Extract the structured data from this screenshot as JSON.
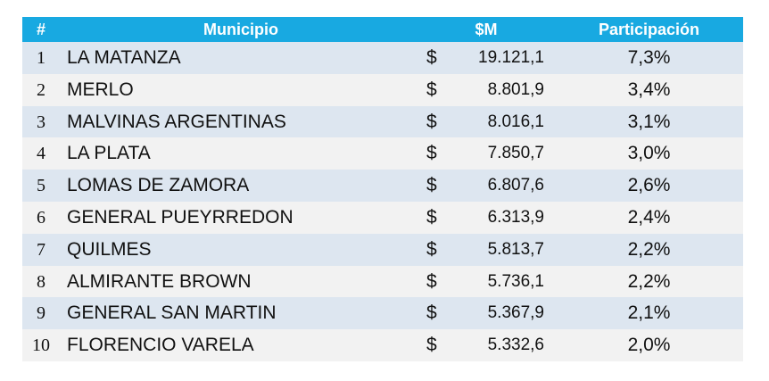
{
  "table": {
    "header": [
      "#",
      "Municipio",
      "$M",
      "Participación"
    ],
    "rows": [
      [
        "1",
        "LA MATANZA",
        "$",
        "19.121,1",
        "7,3%"
      ],
      [
        "2",
        "MERLO",
        "$",
        "8.801,9",
        "3,4%"
      ],
      [
        "3",
        "MALVINAS ARGENTINAS",
        "$",
        "8.016,1",
        "3,1%"
      ],
      [
        "4",
        "LA PLATA",
        "$",
        "7.850,7",
        "3,0%"
      ],
      [
        "5",
        "LOMAS DE ZAMORA",
        "$",
        "6.807,6",
        "2,6%"
      ],
      [
        "6",
        "GENERAL PUEYRREDON",
        "$",
        "6.313,9",
        "2,4%"
      ],
      [
        "7",
        "QUILMES",
        "$",
        "5.813,7",
        "2,2%"
      ],
      [
        "8",
        "ALMIRANTE BROWN",
        "$",
        "5.736,1",
        "2,2%"
      ],
      [
        "9",
        "GENERAL SAN MARTIN",
        "$",
        "5.367,9",
        "2,1%"
      ],
      [
        "10",
        "FLORENCIO VARELA",
        "$",
        "5.332,6",
        "2,0%"
      ]
    ]
  }
}
